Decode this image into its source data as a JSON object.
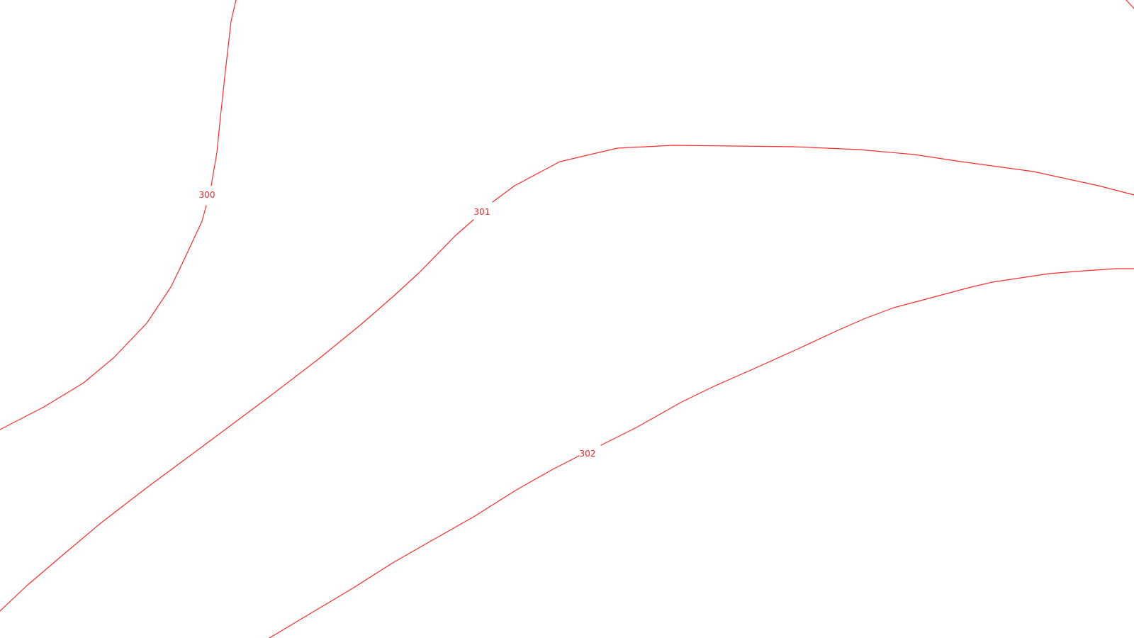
{
  "map": {
    "line_color": "#ff2a2a",
    "label_color": "#e8262c",
    "background": "#ffffff",
    "contours": [
      {
        "id": "contour-300",
        "elevation_label": "300"
      },
      {
        "id": "contour-301",
        "elevation_label": "301"
      },
      {
        "id": "contour-302",
        "elevation_label": "302"
      }
    ]
  }
}
